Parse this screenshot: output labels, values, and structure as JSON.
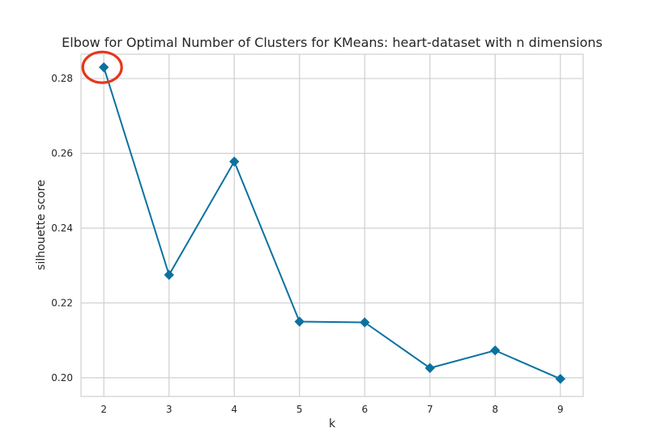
{
  "chart_data": {
    "type": "line",
    "title": "Elbow for Optimal Number of Clusters for KMeans: heart-dataset with n dimensions",
    "xlabel": "k",
    "ylabel": "silhouette score",
    "x": [
      2,
      3,
      4,
      5,
      6,
      7,
      8,
      9
    ],
    "series": [
      {
        "values": [
          0.283,
          0.2275,
          0.2578,
          0.215,
          0.2148,
          0.2026,
          0.2073,
          0.1997
        ]
      }
    ],
    "xlim": [
      1.65,
      9.35
    ],
    "ylim": [
      0.195,
      0.2865
    ],
    "xticks": [
      2,
      3,
      4,
      5,
      6,
      7,
      8,
      9
    ],
    "yticks": [
      0.2,
      0.22,
      0.24,
      0.26,
      0.28
    ],
    "ytick_labels": [
      "0.20",
      "0.22",
      "0.24",
      "0.26",
      "0.28"
    ],
    "grid": true,
    "highlight_point_index": 0,
    "colors": {
      "line": "#0b72a0",
      "highlight": "#e8351a",
      "grid": "#cfcfcf",
      "spine": "#cfcfcf"
    }
  }
}
